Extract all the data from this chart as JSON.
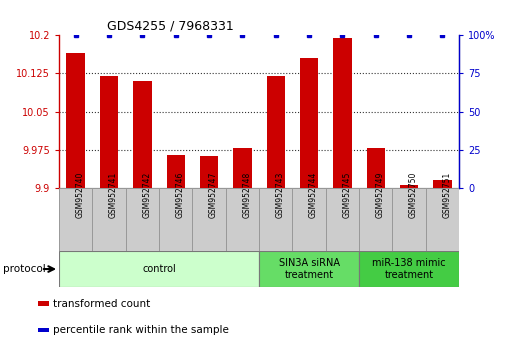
{
  "title": "GDS4255 / 7968331",
  "samples": [
    "GSM952740",
    "GSM952741",
    "GSM952742",
    "GSM952746",
    "GSM952747",
    "GSM952748",
    "GSM952743",
    "GSM952744",
    "GSM952745",
    "GSM952749",
    "GSM952750",
    "GSM952751"
  ],
  "red_values": [
    10.165,
    10.12,
    10.11,
    9.965,
    9.963,
    9.978,
    10.12,
    10.155,
    10.195,
    9.978,
    9.905,
    9.915
  ],
  "blue_values": [
    100,
    100,
    100,
    100,
    100,
    100,
    100,
    100,
    100,
    100,
    100,
    100
  ],
  "ylim_left": [
    9.9,
    10.2
  ],
  "ylim_right": [
    0,
    100
  ],
  "yticks_left": [
    9.9,
    9.975,
    10.05,
    10.125,
    10.2
  ],
  "yticks_right": [
    0,
    25,
    50,
    75,
    100
  ],
  "ytick_labels_left": [
    "9.9",
    "9.975",
    "10.05",
    "10.125",
    "10.2"
  ],
  "ytick_labels_right": [
    "0",
    "25",
    "50",
    "75",
    "100%"
  ],
  "grid_yticks": [
    9.975,
    10.05,
    10.125
  ],
  "red_color": "#cc0000",
  "blue_color": "#0000cc",
  "bar_width": 0.55,
  "group_colors": [
    "#ccffcc",
    "#66dd66",
    "#44cc44"
  ],
  "group_labels": [
    "control",
    "SIN3A siRNA\ntreatment",
    "miR-138 mimic\ntreatment"
  ],
  "group_starts": [
    -0.5,
    5.5,
    8.5
  ],
  "group_ends": [
    5.5,
    8.5,
    11.5
  ],
  "legend_items": [
    {
      "color": "#cc0000",
      "label": "transformed count"
    },
    {
      "color": "#0000cc",
      "label": "percentile rank within the sample"
    }
  ],
  "protocol_label": "protocol",
  "label_box_color": "#cccccc",
  "label_box_edge": "#999999"
}
